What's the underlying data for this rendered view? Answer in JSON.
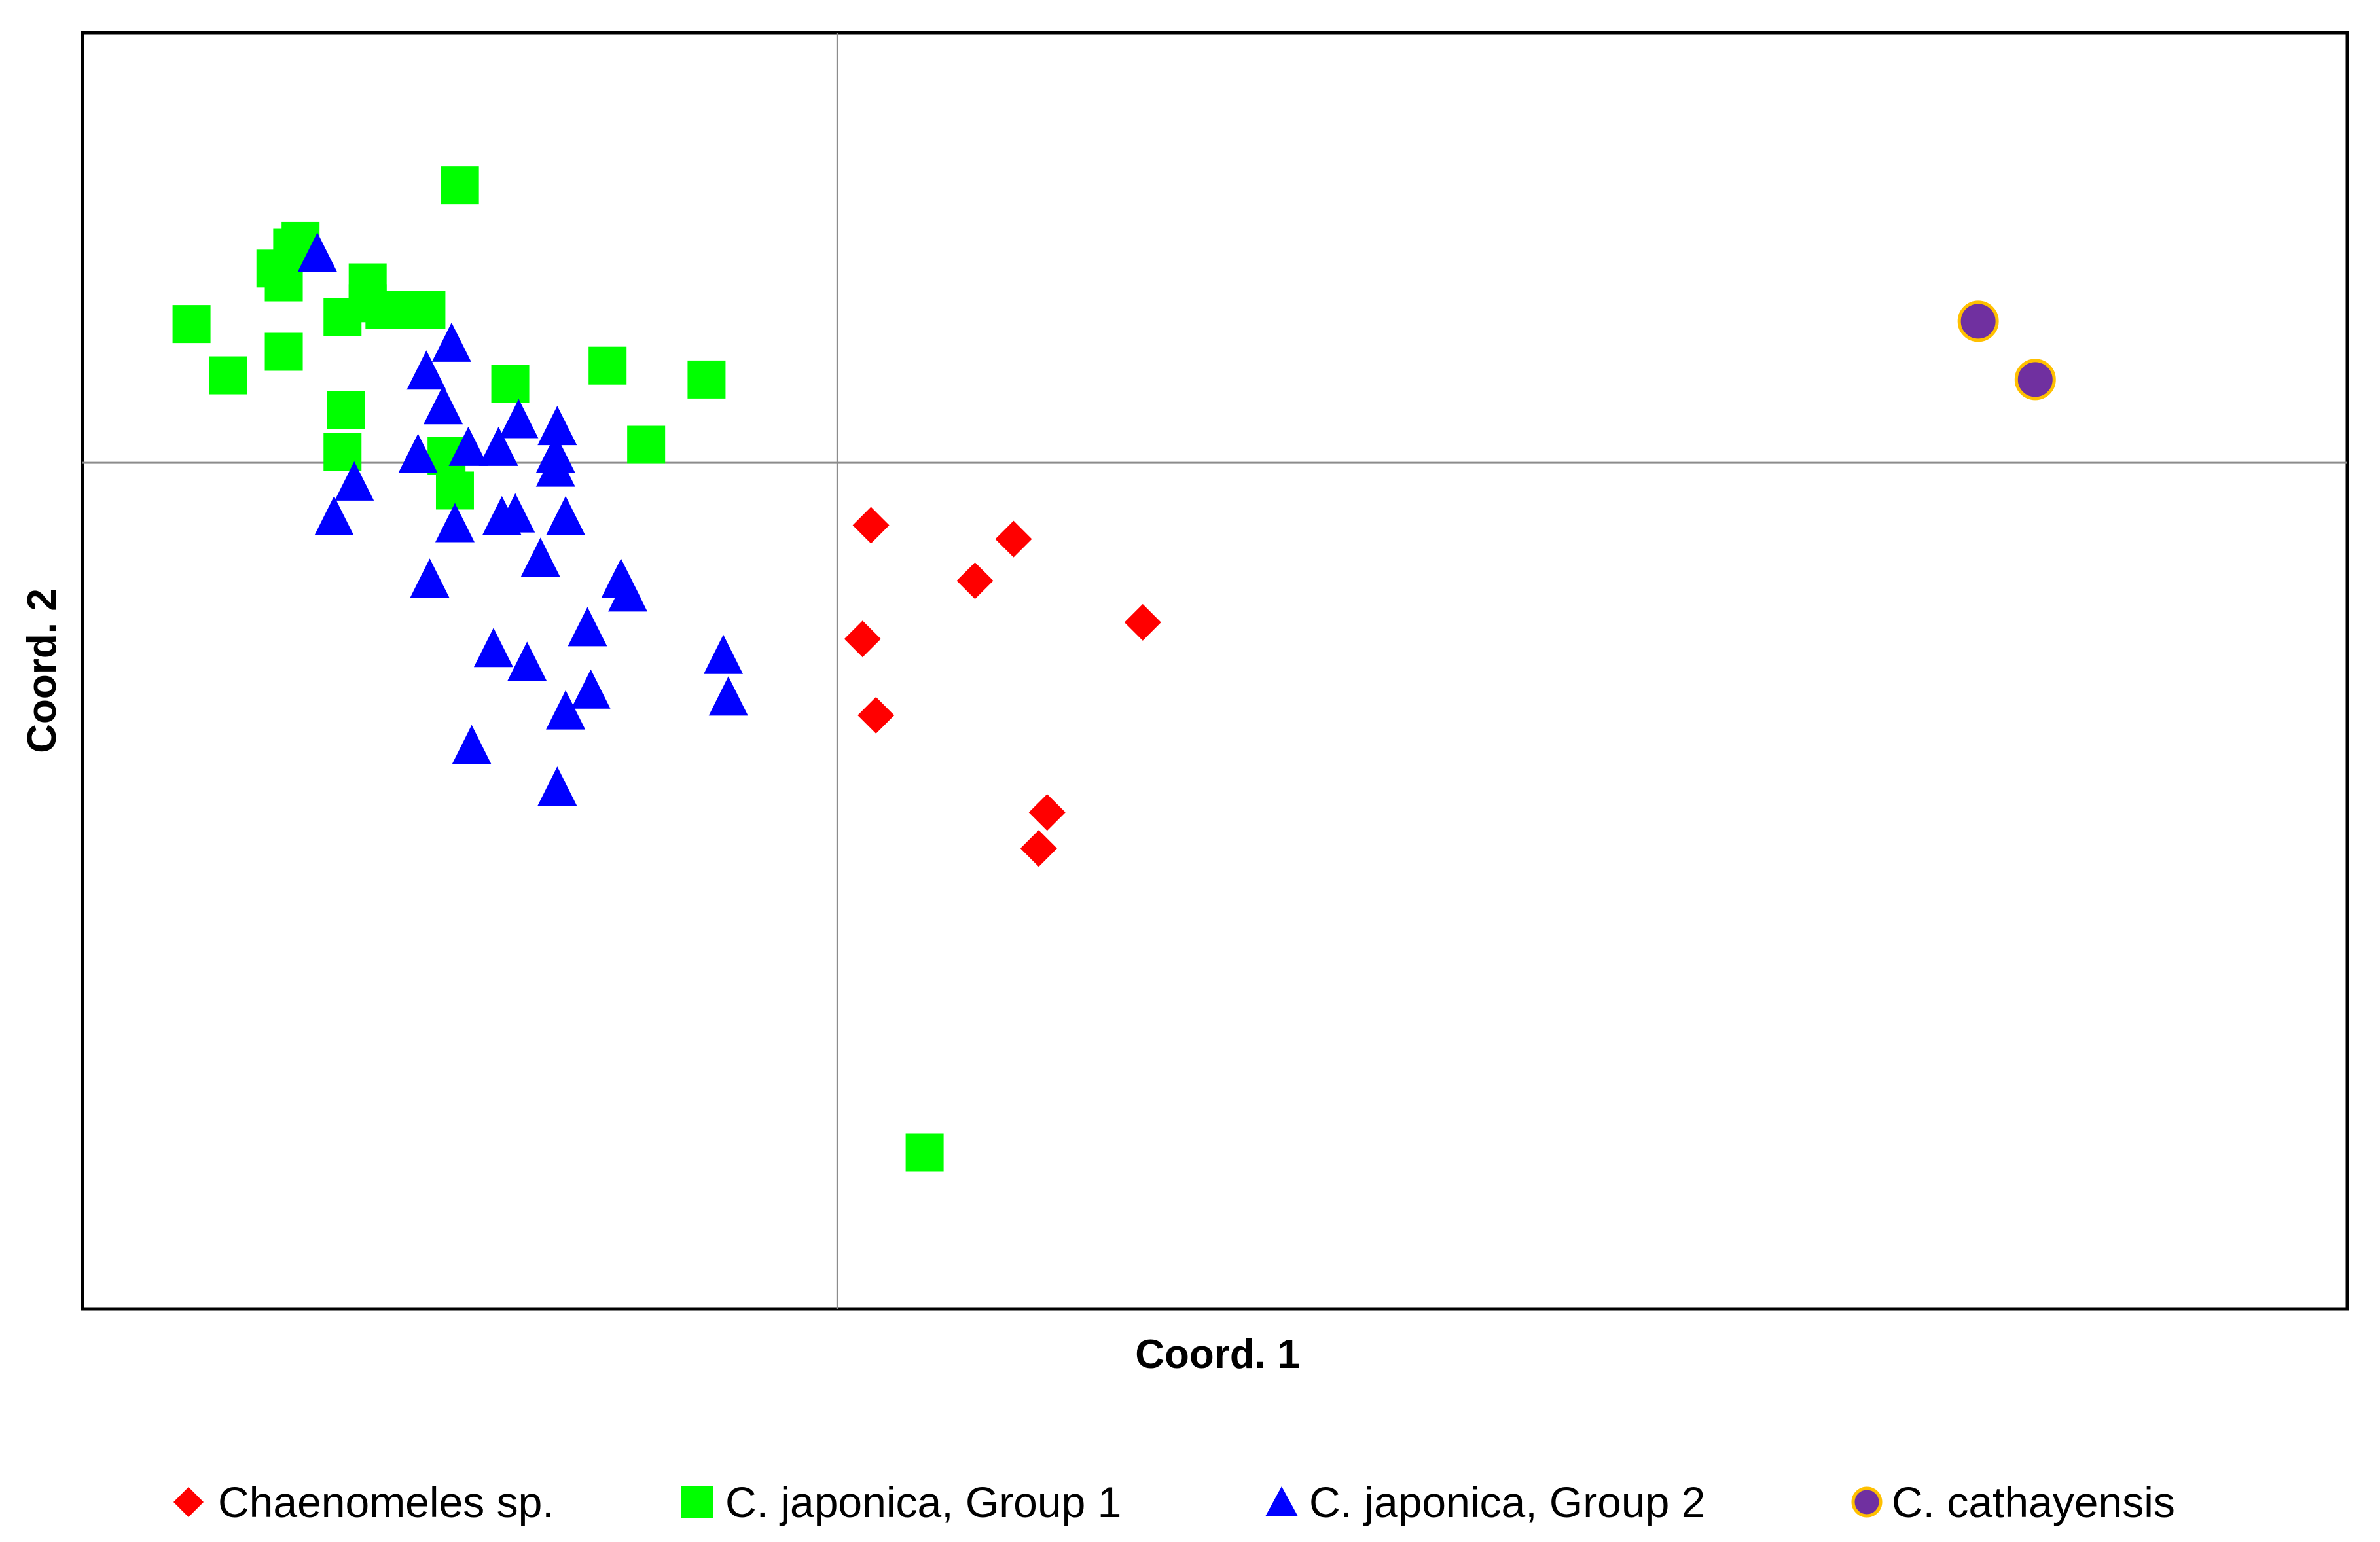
{
  "chart_data": {
    "type": "scatter",
    "title": "",
    "xlabel": "Coord. 1",
    "ylabel": "Coord. 2",
    "xlim": [
      -0.45,
      0.9
    ],
    "ylim": [
      -0.61,
      0.31
    ],
    "grid": false,
    "zero_lines": true,
    "legend": {
      "placement": "bottom"
    },
    "series": [
      {
        "name": "Chaenomeles sp.",
        "marker": "diamond",
        "color": "#ff0000",
        "stroke": "#ff0000",
        "points": [
          [
            0.02,
            -0.045
          ],
          [
            0.105,
            -0.055
          ],
          [
            0.082,
            -0.085
          ],
          [
            0.182,
            -0.115
          ],
          [
            0.015,
            -0.127
          ],
          [
            0.023,
            -0.182
          ],
          [
            0.125,
            -0.252
          ],
          [
            0.12,
            -0.278
          ]
        ]
      },
      {
        "name": "C. japonica, Group 1",
        "marker": "square",
        "color": "#00ff00",
        "stroke": "#00ff00",
        "points": [
          [
            -0.225,
            0.2
          ],
          [
            -0.325,
            0.155
          ],
          [
            -0.32,
            0.16
          ],
          [
            -0.335,
            0.14
          ],
          [
            -0.33,
            0.13
          ],
          [
            -0.28,
            0.13
          ],
          [
            -0.28,
            0.115
          ],
          [
            -0.27,
            0.11
          ],
          [
            -0.26,
            0.11
          ],
          [
            -0.245,
            0.11
          ],
          [
            -0.385,
            0.1
          ],
          [
            -0.295,
            0.105
          ],
          [
            -0.33,
            0.08
          ],
          [
            -0.363,
            0.063
          ],
          [
            -0.195,
            0.057
          ],
          [
            -0.137,
            0.07
          ],
          [
            -0.078,
            0.06
          ],
          [
            -0.293,
            0.038
          ],
          [
            -0.295,
            0.008
          ],
          [
            -0.233,
            0.005
          ],
          [
            -0.228,
            -0.02
          ],
          [
            -0.114,
            0.013
          ],
          [
            0.052,
            -0.497
          ]
        ]
      },
      {
        "name": "C. japonica, Group 2",
        "marker": "triangle",
        "color": "#0000ff",
        "stroke": "#0000ff",
        "points": [
          [
            -0.31,
            0.15
          ],
          [
            -0.23,
            0.085
          ],
          [
            -0.245,
            0.065
          ],
          [
            -0.235,
            0.04
          ],
          [
            -0.19,
            0.03
          ],
          [
            -0.167,
            0.025
          ],
          [
            -0.202,
            0.01
          ],
          [
            -0.22,
            0.01
          ],
          [
            -0.25,
            0.005
          ],
          [
            -0.168,
            0.005
          ],
          [
            -0.168,
            -0.005
          ],
          [
            -0.288,
            -0.015
          ],
          [
            -0.3,
            -0.04
          ],
          [
            -0.192,
            -0.038
          ],
          [
            -0.2,
            -0.04
          ],
          [
            -0.228,
            -0.045
          ],
          [
            -0.162,
            -0.04
          ],
          [
            -0.177,
            -0.07
          ],
          [
            -0.243,
            -0.085
          ],
          [
            -0.129,
            -0.085
          ],
          [
            -0.125,
            -0.095
          ],
          [
            -0.149,
            -0.12
          ],
          [
            -0.205,
            -0.135
          ],
          [
            -0.185,
            -0.145
          ],
          [
            -0.147,
            -0.165
          ],
          [
            -0.162,
            -0.18
          ],
          [
            -0.068,
            -0.14
          ],
          [
            -0.065,
            -0.17
          ],
          [
            -0.218,
            -0.205
          ],
          [
            -0.167,
            -0.235
          ]
        ]
      },
      {
        "name": "C. cathayensis",
        "marker": "circle",
        "color": "#7030a0",
        "stroke": "#ffc000",
        "points": [
          [
            0.68,
            0.102
          ],
          [
            0.714,
            0.06
          ]
        ]
      }
    ]
  }
}
